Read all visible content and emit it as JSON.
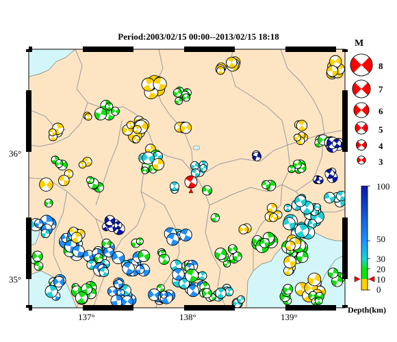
{
  "title": "Period:2003/02/15 00:00--2013/02/15 18:18",
  "axes": {
    "lon_ticks": [
      "137°",
      "138°",
      "139°"
    ],
    "lat_ticks": [
      "36°",
      "35°"
    ]
  },
  "magnitude_legend": {
    "title": "M",
    "labels": [
      "8",
      "7",
      "6",
      "5",
      "4",
      "3"
    ]
  },
  "depth_scale": {
    "labels": [
      "100",
      "50",
      "30",
      "20",
      "10",
      "0"
    ],
    "unit": "Depth(km)",
    "colors": {
      "shallow": "#ffd200",
      "mid": "#12e012",
      "cyan": "#22cfd6",
      "blue": "#1e90ff",
      "deep": "#0a17a8",
      "main": "#ff0000"
    }
  },
  "map_colors": {
    "land": "#fde5c4",
    "sea": "#d3f7f8",
    "border": "#9a9a9a"
  }
}
